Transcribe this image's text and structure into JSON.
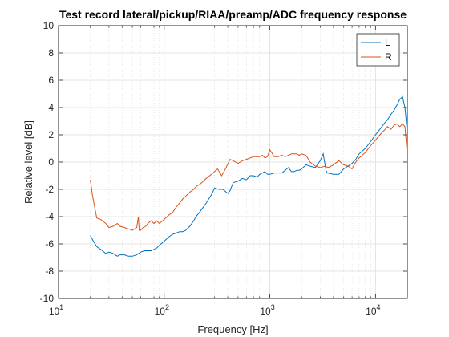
{
  "chart_data": {
    "type": "line",
    "title": "Test record lateral/pickup/RIAA/preamp/ADC frequency response",
    "xlabel": "Frequency [Hz]",
    "ylabel": "Relative level [dB]",
    "xscale": "log",
    "xlim": [
      10,
      20000
    ],
    "ylim": [
      -10,
      10
    ],
    "yticks": [
      -10,
      -8,
      -6,
      -4,
      -2,
      0,
      2,
      4,
      6,
      8,
      10
    ],
    "xticks": [
      {
        "base": "10",
        "exp": "1"
      },
      {
        "base": "10",
        "exp": "2"
      },
      {
        "base": "10",
        "exp": "3"
      },
      {
        "base": "10",
        "exp": "4"
      }
    ],
    "grid": true,
    "legend_position": "top-right",
    "series": [
      {
        "name": "L",
        "color": "#0072BD",
        "x": [
          20,
          21,
          23,
          25,
          28,
          30,
          33,
          36,
          38,
          42,
          46,
          50,
          55,
          60,
          65,
          70,
          75,
          80,
          85,
          90,
          100,
          110,
          120,
          130,
          140,
          150,
          160,
          175,
          190,
          200,
          220,
          250,
          280,
          300,
          330,
          360,
          400,
          420,
          450,
          500,
          550,
          600,
          650,
          700,
          760,
          800,
          850,
          900,
          950,
          1000,
          1100,
          1200,
          1300,
          1400,
          1500,
          1600,
          1700,
          1800,
          1900,
          2000,
          2200,
          2400,
          2700,
          3000,
          3200,
          3400,
          3500,
          4000,
          4500,
          5000,
          5500,
          6000,
          6500,
          7000,
          8000,
          9000,
          10000,
          11000,
          12000,
          13000,
          14000,
          15000,
          16000,
          17000,
          18000,
          19000,
          20000
        ],
        "y": [
          -5.4,
          -5.7,
          -6.2,
          -6.4,
          -6.7,
          -6.6,
          -6.7,
          -6.9,
          -6.8,
          -6.8,
          -6.9,
          -6.9,
          -6.8,
          -6.6,
          -6.5,
          -6.5,
          -6.5,
          -6.4,
          -6.3,
          -6.1,
          -5.8,
          -5.5,
          -5.3,
          -5.2,
          -5.1,
          -5.1,
          -5.0,
          -4.7,
          -4.3,
          -4.0,
          -3.6,
          -3.0,
          -2.4,
          -1.9,
          -2.0,
          -2.0,
          -2.3,
          -2.1,
          -1.5,
          -1.4,
          -1.2,
          -1.3,
          -1.0,
          -1.0,
          -1.1,
          -0.9,
          -0.8,
          -0.7,
          -0.9,
          -0.9,
          -0.8,
          -0.8,
          -0.8,
          -0.6,
          -0.4,
          -0.7,
          -0.7,
          -0.6,
          -0.6,
          -0.5,
          -0.2,
          -0.3,
          -0.4,
          0.1,
          0.6,
          -0.6,
          -0.8,
          -0.9,
          -0.9,
          -0.5,
          -0.3,
          -0.1,
          0.2,
          0.6,
          1.0,
          1.5,
          2.0,
          2.4,
          2.8,
          3.1,
          3.5,
          3.8,
          4.2,
          4.6,
          4.8,
          4.0,
          2.2
        ]
      },
      {
        "name": "R",
        "color": "#D95319",
        "x": [
          20,
          21,
          23,
          25,
          28,
          30,
          33,
          36,
          38,
          42,
          46,
          50,
          55,
          57,
          58,
          60,
          63,
          67,
          70,
          75,
          80,
          85,
          90,
          100,
          110,
          120,
          130,
          140,
          150,
          160,
          175,
          190,
          200,
          220,
          250,
          280,
          300,
          320,
          350,
          380,
          420,
          450,
          500,
          550,
          600,
          650,
          700,
          750,
          800,
          850,
          900,
          950,
          1000,
          1100,
          1200,
          1300,
          1400,
          1500,
          1600,
          1700,
          1800,
          1900,
          2000,
          2200,
          2400,
          2700,
          3000,
          3300,
          3600,
          4000,
          4500,
          5000,
          5500,
          6000,
          6500,
          7000,
          8000,
          9000,
          10000,
          11000,
          12000,
          13000,
          14000,
          15000,
          16000,
          17000,
          18000,
          19000,
          20000
        ],
        "y": [
          -1.3,
          -2.5,
          -4.1,
          -4.2,
          -4.5,
          -4.8,
          -4.7,
          -4.5,
          -4.7,
          -4.8,
          -4.9,
          -5.0,
          -4.8,
          -4.0,
          -5.0,
          -5.0,
          -4.8,
          -4.7,
          -4.5,
          -4.3,
          -4.5,
          -4.3,
          -4.5,
          -4.2,
          -3.9,
          -3.7,
          -3.3,
          -3.0,
          -2.7,
          -2.5,
          -2.2,
          -2.0,
          -1.8,
          -1.6,
          -1.2,
          -0.9,
          -0.7,
          -0.5,
          -1.0,
          -0.5,
          0.2,
          0.1,
          -0.1,
          0.1,
          0.2,
          0.3,
          0.4,
          0.4,
          0.4,
          0.5,
          0.3,
          0.4,
          0.9,
          0.4,
          0.4,
          0.5,
          0.4,
          0.5,
          0.6,
          0.6,
          0.6,
          0.5,
          0.6,
          0.5,
          0.0,
          -0.3,
          -0.4,
          -0.3,
          -0.4,
          -0.2,
          0.1,
          -0.2,
          -0.3,
          -0.5,
          0.0,
          0.3,
          0.7,
          1.2,
          1.6,
          2.0,
          2.3,
          2.6,
          2.4,
          2.7,
          2.8,
          2.6,
          2.8,
          2.6,
          0.6
        ]
      }
    ]
  }
}
